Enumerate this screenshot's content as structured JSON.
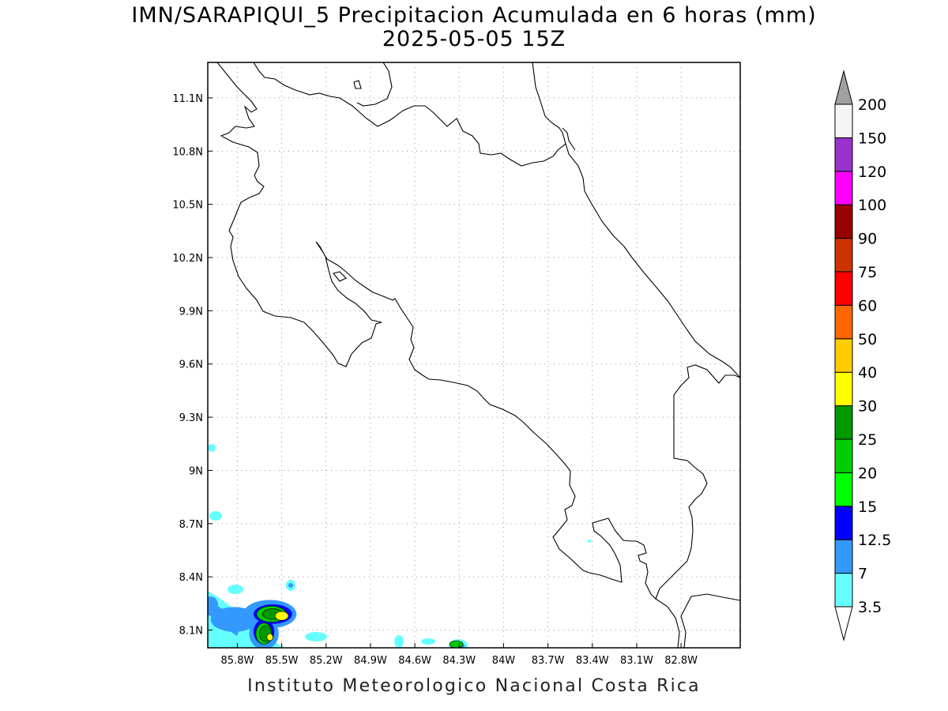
{
  "title_line1": "IMN/SARAPIQUI_5 Precipitacion Acumulada en 6 horas (mm)",
  "title_line2": "2025-05-05 15Z",
  "footer": "Instituto Meteorologico Nacional Costa Rica",
  "map": {
    "lon_range": [
      -86.0,
      -82.4
    ],
    "lat_range": [
      8.0,
      11.3
    ],
    "lon_ticks": [
      {
        "value": -85.8,
        "label": "85.8W"
      },
      {
        "value": -85.5,
        "label": "85.5W"
      },
      {
        "value": -85.2,
        "label": "85.2W"
      },
      {
        "value": -84.9,
        "label": "84.9W"
      },
      {
        "value": -84.6,
        "label": "84.6W"
      },
      {
        "value": -84.3,
        "label": "84.3W"
      },
      {
        "value": -84.0,
        "label": "84W"
      },
      {
        "value": -83.7,
        "label": "83.7W"
      },
      {
        "value": -83.4,
        "label": "83.4W"
      },
      {
        "value": -83.1,
        "label": "83.1W"
      },
      {
        "value": -82.8,
        "label": "82.8W"
      }
    ],
    "lat_ticks": [
      {
        "value": 11.1,
        "label": "11.1N"
      },
      {
        "value": 10.8,
        "label": "10.8N"
      },
      {
        "value": 10.5,
        "label": "10.5N"
      },
      {
        "value": 10.2,
        "label": "10.2N"
      },
      {
        "value": 9.9,
        "label": "9.9N"
      },
      {
        "value": 9.6,
        "label": "9.6N"
      },
      {
        "value": 9.3,
        "label": "9.3N"
      },
      {
        "value": 9.0,
        "label": "9N"
      },
      {
        "value": 8.7,
        "label": "8.7N"
      },
      {
        "value": 8.4,
        "label": "8.4N"
      },
      {
        "value": 8.1,
        "label": "8.1N"
      }
    ],
    "grid": true
  },
  "colorbar": {
    "levels": [
      "3.5",
      "7",
      "12.5",
      "15",
      "20",
      "25",
      "30",
      "40",
      "50",
      "60",
      "75",
      "90",
      "100",
      "120",
      "150",
      "200"
    ],
    "colors": [
      "#66ffff",
      "#3399ff",
      "#0000ff",
      "#00ff00",
      "#00cc00",
      "#009900",
      "#ffff00",
      "#ffcc00",
      "#ff6600",
      "#ff0000",
      "#cc3300",
      "#990000",
      "#ff00ff",
      "#9933cc",
      "#f5f5f5"
    ],
    "extend_low_color": "#ffffff",
    "extend_high_color": "#a0a0a0"
  },
  "precip_cells": [
    {
      "lon": -85.98,
      "lat": 8.24,
      "rx": 0.05,
      "ry": 0.05,
      "level": 1
    },
    {
      "lon": -85.82,
      "lat": 8.16,
      "rx": 0.16,
      "ry": 0.07,
      "level": 1
    },
    {
      "lon": -85.58,
      "lat": 8.19,
      "rx": 0.18,
      "ry": 0.08,
      "level": 1
    },
    {
      "lon": -85.62,
      "lat": 8.08,
      "rx": 0.1,
      "ry": 0.09,
      "level": 1
    },
    {
      "lon": -85.56,
      "lat": 8.19,
      "rx": 0.13,
      "ry": 0.055,
      "level": 2
    },
    {
      "lon": -85.62,
      "lat": 8.09,
      "rx": 0.07,
      "ry": 0.07,
      "level": 2
    },
    {
      "lon": -85.57,
      "lat": 8.19,
      "rx": 0.1,
      "ry": 0.045,
      "level": 4
    },
    {
      "lon": -85.62,
      "lat": 8.08,
      "rx": 0.055,
      "ry": 0.06,
      "level": 4
    },
    {
      "lon": -85.56,
      "lat": 8.19,
      "rx": 0.07,
      "ry": 0.03,
      "level": 5
    },
    {
      "lon": -85.61,
      "lat": 8.08,
      "rx": 0.04,
      "ry": 0.045,
      "level": 5
    },
    {
      "lon": -85.5,
      "lat": 8.18,
      "rx": 0.045,
      "ry": 0.025,
      "level": 6
    },
    {
      "lon": -85.58,
      "lat": 8.06,
      "rx": 0.02,
      "ry": 0.02,
      "level": 6
    },
    {
      "lon": -84.32,
      "lat": 8.02,
      "rx": 0.045,
      "ry": 0.02,
      "level": 4
    }
  ]
}
